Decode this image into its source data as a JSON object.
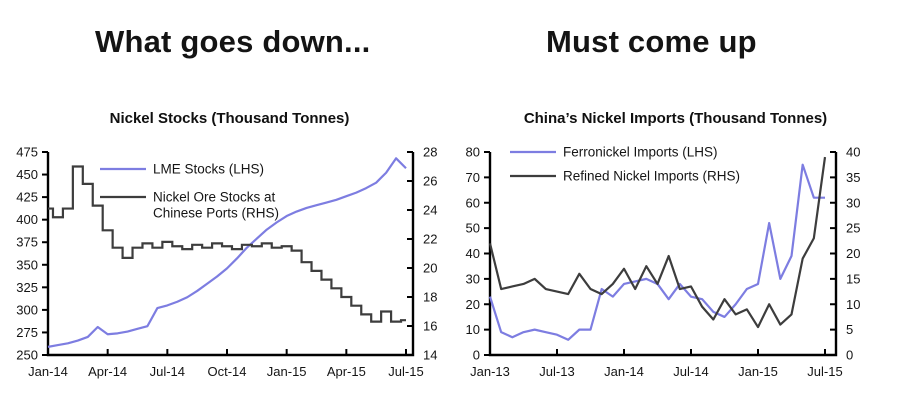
{
  "headlines": {
    "left": "What goes down...",
    "right": "Must come up"
  },
  "colors": {
    "series_blue": "#7d7de1",
    "series_dark": "#3d3d3d",
    "axis": "#000000",
    "text": "#151515"
  },
  "chart_data": [
    {
      "type": "line",
      "title": "Nickel Stocks (Thousand Tonnes)",
      "x_labels": [
        "Jan-14",
        "Apr-14",
        "Jul-14",
        "Oct-14",
        "Jan-15",
        "Apr-15",
        "Jul-15"
      ],
      "x_tick_indices": [
        0,
        6,
        12,
        18,
        24,
        30,
        36
      ],
      "x_resolution": "semi-monthly",
      "grid": false,
      "legend_position": "top-inside",
      "left_axis": {
        "min": 250,
        "max": 475,
        "ticks": [
          250,
          275,
          300,
          325,
          350,
          375,
          400,
          425,
          450,
          475
        ]
      },
      "right_axis": {
        "min": 14,
        "max": 28,
        "ticks": [
          14,
          16,
          18,
          20,
          22,
          24,
          26,
          28
        ]
      },
      "series": [
        {
          "name": "LME Stocks (LHS)",
          "legend_lines": [
            "LME Stocks (LHS)"
          ],
          "axis": "left",
          "color": "#7d7de1",
          "style": "line",
          "values": [
            259,
            261,
            263,
            266,
            270,
            281,
            273,
            274,
            276,
            279,
            282,
            302,
            305,
            309,
            314,
            321,
            329,
            337,
            346,
            357,
            369,
            379,
            389,
            397,
            404,
            409,
            413,
            416,
            419,
            422,
            426,
            430,
            435,
            441,
            452,
            468,
            457
          ]
        },
        {
          "name": "Nickel Ore Stocks at Chinese Ports (RHS)",
          "legend_lines": [
            "Nickel Ore Stocks at",
            "Chinese Ports (RHS)"
          ],
          "axis": "right",
          "color": "#3d3d3d",
          "style": "step",
          "values": [
            24.1,
            23.5,
            24.1,
            27,
            25.8,
            24.3,
            22.6,
            21.4,
            20.7,
            21.4,
            21.7,
            21.4,
            21.8,
            21.5,
            21.3,
            21.6,
            21.4,
            21.7,
            21.5,
            21.3,
            21.6,
            21.5,
            21.7,
            21.4,
            21.5,
            21.2,
            20.4,
            19.8,
            19.2,
            18.6,
            18,
            17.4,
            16.8,
            16.3,
            17,
            16.3,
            16.4
          ]
        }
      ]
    },
    {
      "type": "line",
      "title": "China’s Nickel Imports (Thousand Tonnes)",
      "x_labels": [
        "Jan-13",
        "Jul-13",
        "Jan-14",
        "Jul-14",
        "Jan-15",
        "Jul-15"
      ],
      "x_tick_indices": [
        0,
        6,
        12,
        18,
        24,
        30
      ],
      "x_resolution": "monthly",
      "grid": false,
      "legend_position": "top-inside",
      "left_axis": {
        "min": 0,
        "max": 80,
        "ticks": [
          0,
          10,
          20,
          30,
          40,
          50,
          60,
          70,
          80
        ]
      },
      "right_axis": {
        "min": 0,
        "max": 40,
        "ticks": [
          0,
          5,
          10,
          15,
          20,
          25,
          30,
          35,
          40
        ]
      },
      "series": [
        {
          "name": "Ferronickel Imports (LHS)",
          "legend_lines": [
            "Ferronickel Imports (LHS)"
          ],
          "axis": "left",
          "color": "#7d7de1",
          "style": "line",
          "values": [
            23,
            9,
            7,
            9,
            10,
            9,
            8,
            6,
            10,
            10,
            26,
            23,
            28,
            29,
            30,
            28,
            22,
            28,
            23,
            22,
            17,
            15,
            20,
            26,
            28,
            52,
            30,
            39,
            75,
            62,
            62
          ]
        },
        {
          "name": "Refined Nickel Imports (RHS)",
          "legend_lines": [
            "Refined Nickel Imports (RHS)"
          ],
          "axis": "right",
          "color": "#3d3d3d",
          "style": "line",
          "values": [
            22,
            13,
            13.5,
            14,
            15,
            13,
            12.5,
            12,
            16,
            13,
            12,
            14,
            17,
            13,
            17.5,
            14,
            19.5,
            13,
            13.5,
            9.5,
            7,
            11,
            8,
            9,
            5.5,
            10,
            6,
            8,
            19,
            23,
            39
          ]
        }
      ]
    }
  ]
}
